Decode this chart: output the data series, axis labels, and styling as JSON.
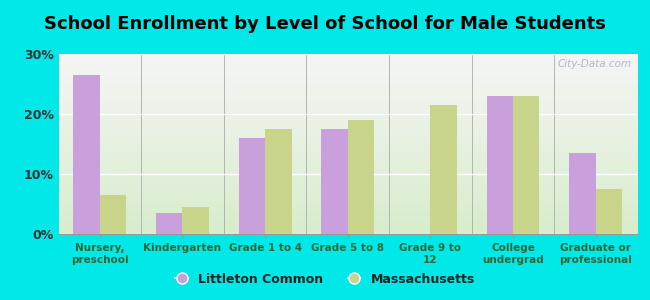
{
  "title": "School Enrollment by Level of School for Male Students",
  "categories": [
    "Nursery,\npreschool",
    "Kindergarten",
    "Grade 1 to 4",
    "Grade 5 to 8",
    "Grade 9 to\n12",
    "College\nundergrad",
    "Graduate or\nprofessional"
  ],
  "littleton_values": [
    26.5,
    3.5,
    16.0,
    17.5,
    0.0,
    23.0,
    13.5
  ],
  "massachusetts_values": [
    6.5,
    4.5,
    17.5,
    19.0,
    21.5,
    23.0,
    7.5
  ],
  "littleton_color": "#c9a0dc",
  "massachusetts_color": "#c8d48a",
  "background_color": "#00e8e8",
  "plot_bg_top": "#f5f5f5",
  "plot_bg_bottom": "#d8edcc",
  "ylim": [
    0,
    30
  ],
  "yticks": [
    0,
    10,
    20,
    30
  ],
  "ytick_labels": [
    "0%",
    "10%",
    "20%",
    "30%"
  ],
  "legend_label_1": "Littleton Common",
  "legend_label_2": "Massachusetts",
  "title_fontsize": 13,
  "bar_width": 0.32,
  "watermark": "City-Data.com"
}
